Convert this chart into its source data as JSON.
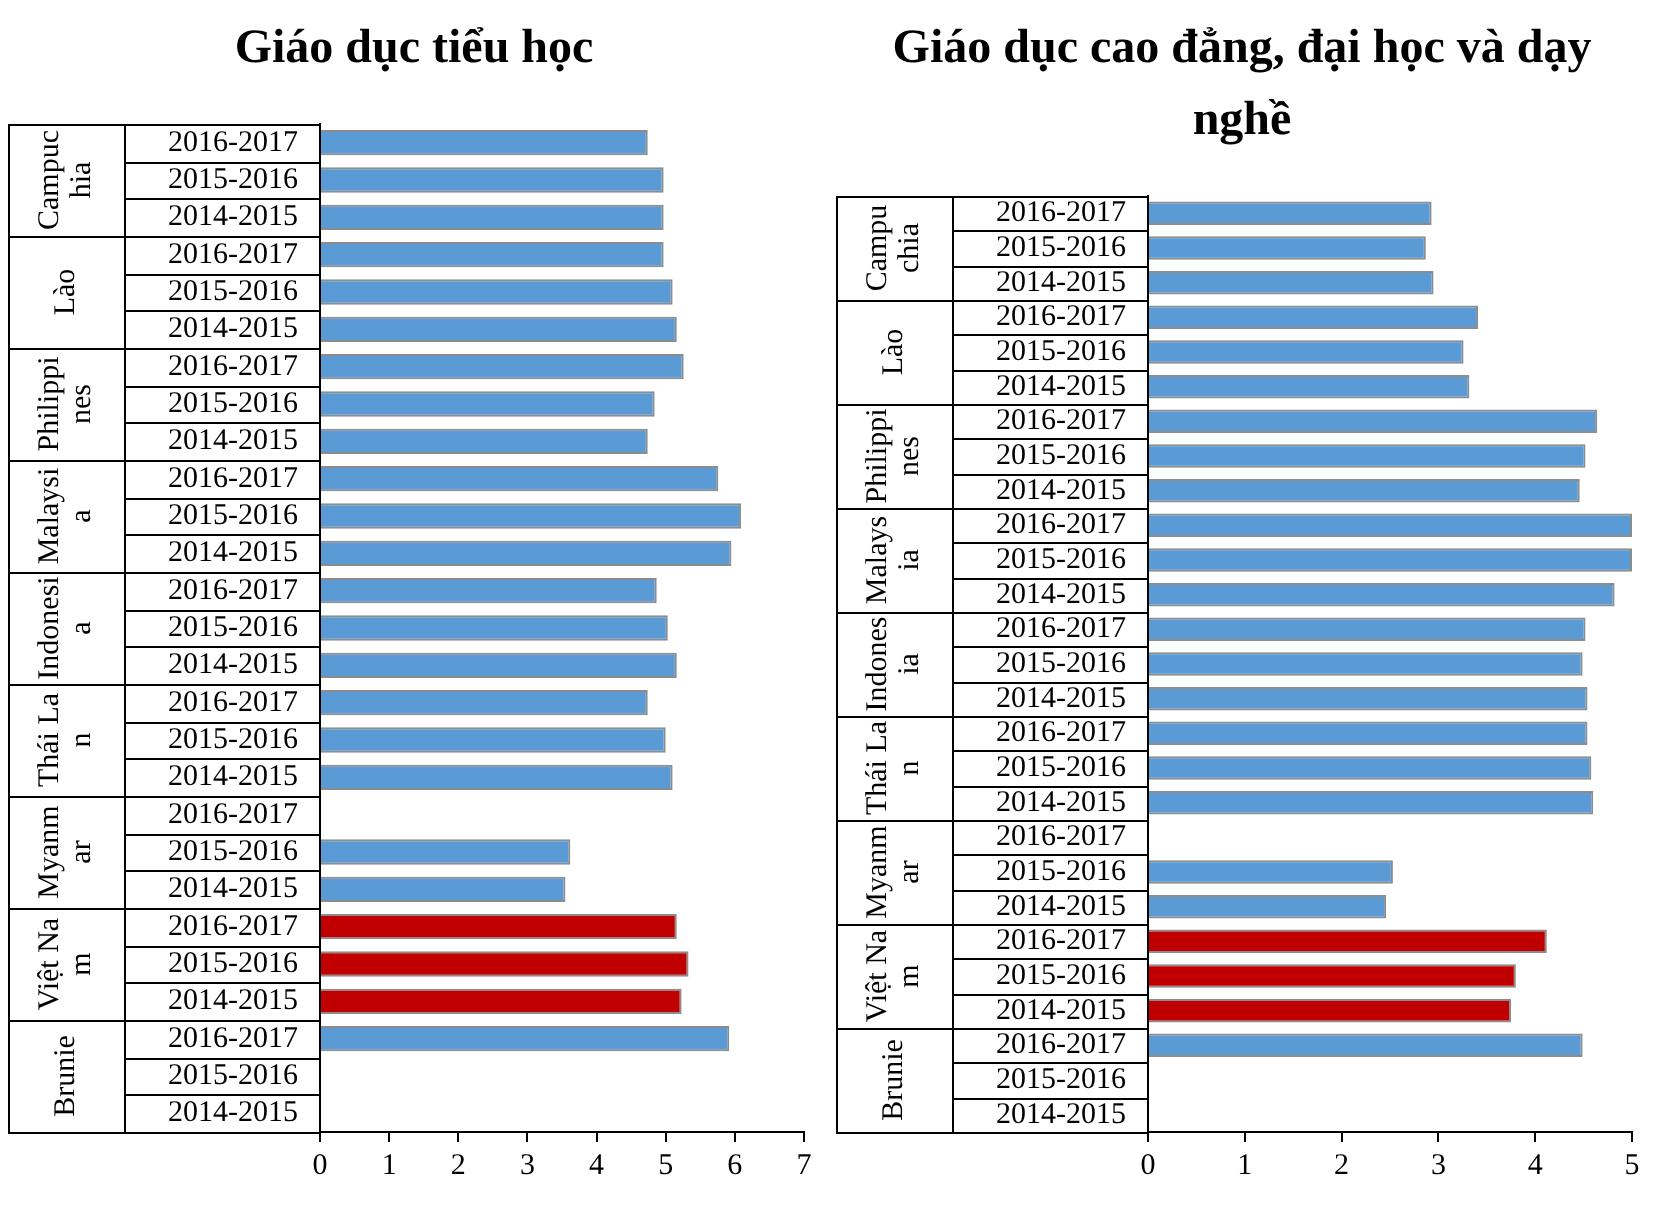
{
  "chart_data": [
    {
      "type": "bar",
      "orientation": "horizontal",
      "title": "Giáo dục tiểu học",
      "categories": [
        "2016-2017",
        "2015-2016",
        "2014-2015",
        "2016-2017",
        "2015-2016",
        "2014-2015",
        "2016-2017",
        "2015-2016",
        "2014-2015",
        "2016-2017",
        "2015-2016",
        "2014-2015",
        "2016-2017",
        "2015-2016",
        "2014-2015",
        "2016-2017",
        "2015-2016",
        "2014-2015",
        "2016-2017",
        "2015-2016",
        "2014-2015",
        "2016-2017",
        "2015-2016",
        "2014-2015",
        "2016-2017",
        "2015-2016",
        "2014-2015"
      ],
      "values": [
        4.74,
        4.97,
        4.97,
        4.97,
        5.1,
        5.16,
        5.26,
        4.84,
        4.74,
        5.76,
        6.09,
        5.95,
        4.87,
        5.03,
        5.16,
        4.74,
        5.0,
        5.1,
        null,
        3.62,
        3.55,
        5.16,
        5.33,
        5.23,
        5.92,
        null,
        null
      ],
      "colors": [
        "#5b9bd5",
        "#5b9bd5",
        "#5b9bd5",
        "#5b9bd5",
        "#5b9bd5",
        "#5b9bd5",
        "#5b9bd5",
        "#5b9bd5",
        "#5b9bd5",
        "#5b9bd5",
        "#5b9bd5",
        "#5b9bd5",
        "#5b9bd5",
        "#5b9bd5",
        "#5b9bd5",
        "#5b9bd5",
        "#5b9bd5",
        "#5b9bd5",
        "#5b9bd5",
        "#5b9bd5",
        "#5b9bd5",
        "#c00000",
        "#c00000",
        "#c00000",
        "#5b9bd5",
        "#5b9bd5",
        "#5b9bd5"
      ],
      "annotations": [
        "Campuchia",
        "Lào",
        "Philippines",
        "Malaysia",
        "Indonesia",
        "Thái Lan",
        "Myanmar",
        "Việt Nam",
        "Brunie"
      ],
      "xlim": [
        0,
        7
      ],
      "xticks": [
        0,
        1,
        2,
        3,
        4,
        5,
        6,
        7
      ],
      "grid": false
    },
    {
      "type": "bar",
      "orientation": "horizontal",
      "title": "Giáo dục cao đẳng, đại học và dạy nghề",
      "categories": [
        "2016-2017",
        "2015-2016",
        "2014-2015",
        "2016-2017",
        "2015-2016",
        "2014-2015",
        "2016-2017",
        "2015-2016",
        "2014-2015",
        "2016-2017",
        "2015-2016",
        "2014-2015",
        "2016-2017",
        "2015-2016",
        "2014-2015",
        "2016-2017",
        "2015-2016",
        "2014-2015",
        "2016-2017",
        "2015-2016",
        "2014-2015",
        "2016-2017",
        "2015-2016",
        "2014-2015",
        "2016-2017",
        "2015-2016",
        "2014-2015"
      ],
      "values": [
        2.93,
        2.87,
        2.95,
        3.41,
        3.26,
        3.32,
        4.64,
        4.52,
        4.46,
        5.0,
        5.0,
        4.82,
        4.52,
        4.49,
        4.54,
        4.54,
        4.58,
        4.6,
        null,
        2.53,
        2.46,
        4.12,
        3.8,
        3.75,
        4.49,
        null,
        null
      ],
      "colors": [
        "#5b9bd5",
        "#5b9bd5",
        "#5b9bd5",
        "#5b9bd5",
        "#5b9bd5",
        "#5b9bd5",
        "#5b9bd5",
        "#5b9bd5",
        "#5b9bd5",
        "#5b9bd5",
        "#5b9bd5",
        "#5b9bd5",
        "#5b9bd5",
        "#5b9bd5",
        "#5b9bd5",
        "#5b9bd5",
        "#5b9bd5",
        "#5b9bd5",
        "#5b9bd5",
        "#5b9bd5",
        "#5b9bd5",
        "#c00000",
        "#c00000",
        "#c00000",
        "#5b9bd5",
        "#5b9bd5",
        "#5b9bd5"
      ],
      "annotations": [
        "Campuchia",
        "Lào",
        "Philippines",
        "Malaysia",
        "Indonesia",
        "Thái Lan",
        "Myanmar",
        "Việt Nam",
        "Brunie"
      ],
      "xlim": [
        0,
        5
      ],
      "xticks": [
        0,
        1,
        2,
        3,
        4,
        5
      ],
      "grid": false
    }
  ]
}
